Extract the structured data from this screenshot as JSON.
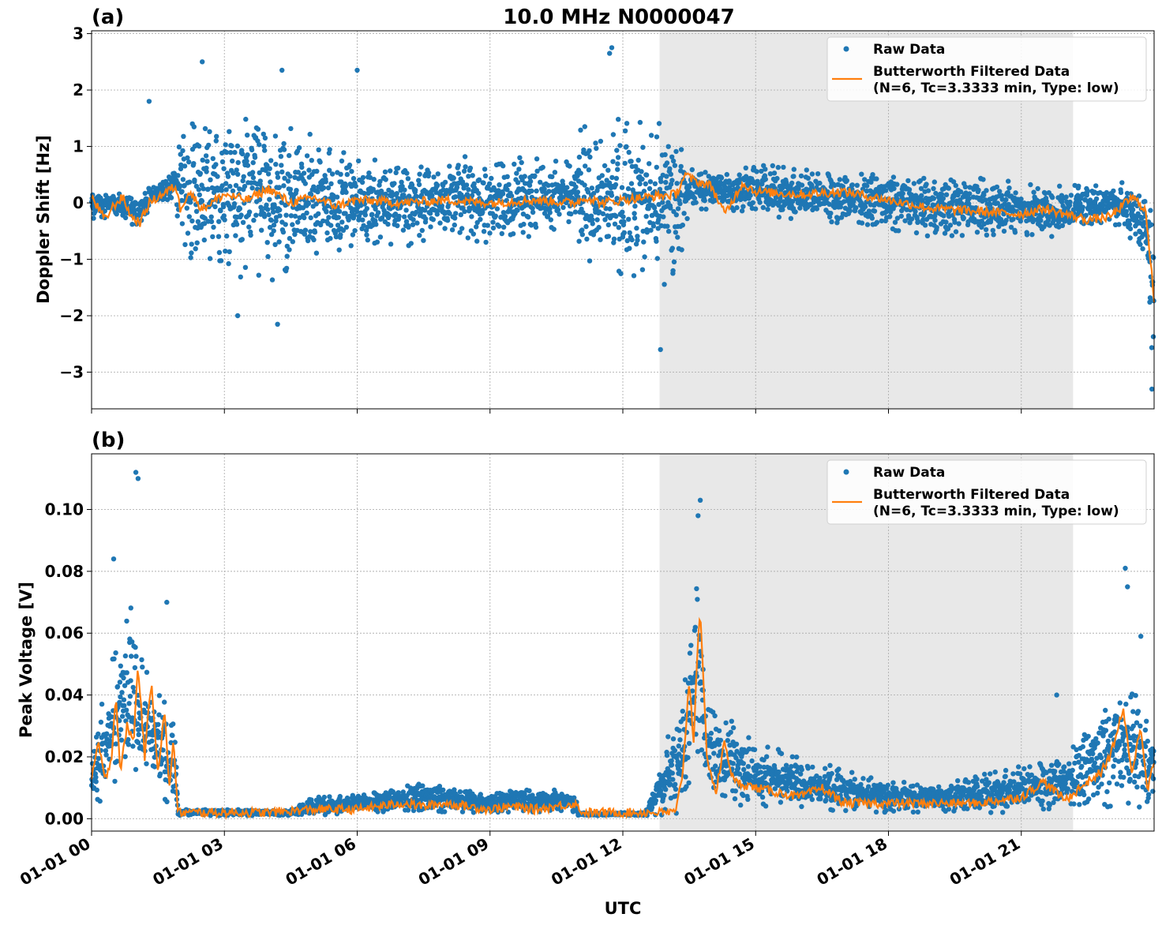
{
  "title": "10.0 MHz N0000047",
  "xlabel": "UTC",
  "colors": {
    "raw": "#1f77b4",
    "filtered": "#ff7f0e",
    "shade": "#e8e8e8",
    "grid": "#b0b0b0"
  },
  "legend": {
    "raw_label": "Raw Data",
    "filtered_label_1": "Butterworth Filtered Data",
    "filtered_label_2": "(N=6, Tc=3.3333 min, Type: low)"
  },
  "chart_data": [
    {
      "type": "scatter",
      "panel_label": "(a)",
      "ylabel": "Doppler Shift [Hz]",
      "xlim_hours": [
        0,
        24
      ],
      "ylim": [
        -3.65,
        3.05
      ],
      "yticks": [
        -3,
        -2,
        -1,
        0,
        1,
        2,
        3
      ],
      "ytick_labels": [
        "−3",
        "−2",
        "−1",
        "0",
        "1",
        "2",
        "3"
      ],
      "xticks_hours": [
        0,
        3,
        6,
        9,
        12,
        15,
        18,
        21
      ],
      "shaded_region_hours": [
        12.83,
        22.17
      ],
      "grid": true,
      "legend_position": "upper right",
      "series": [
        {
          "name": "Raw Data",
          "kind": "points",
          "envelope_hours": [
            0,
            0.5,
            1,
            1.5,
            1.9,
            2.0,
            3,
            4,
            5,
            6,
            7,
            8,
            9,
            10,
            10.9,
            11.0,
            12,
            13,
            13.4,
            13.5,
            15,
            17,
            19,
            21,
            22,
            23,
            23.8,
            24
          ],
          "envelope_low": [
            -0.4,
            -0.2,
            -0.45,
            0.0,
            0.1,
            -1.0,
            -1.3,
            -1.4,
            -1.2,
            -0.9,
            -0.8,
            -0.7,
            -0.75,
            -0.6,
            -0.5,
            -1.3,
            -1.4,
            -1.5,
            -0.8,
            -0.1,
            -0.2,
            -0.4,
            -0.6,
            -0.6,
            -0.6,
            -0.3,
            -0.9,
            -3.3
          ],
          "envelope_high": [
            0.25,
            0.2,
            0.1,
            0.4,
            0.55,
            1.4,
            1.5,
            1.6,
            1.2,
            0.9,
            0.8,
            0.8,
            0.9,
            0.85,
            0.7,
            1.4,
            1.5,
            1.5,
            0.9,
            0.6,
            0.7,
            0.6,
            0.5,
            0.4,
            0.3,
            0.35,
            0.4,
            0.3
          ],
          "outliers": [
            [
              2.5,
              2.5
            ],
            [
              11.75,
              2.75
            ],
            [
              11.7,
              2.65
            ],
            [
              4.2,
              -2.15
            ],
            [
              12.85,
              -2.6
            ],
            [
              3.3,
              -2.0
            ],
            [
              23.95,
              -3.3
            ],
            [
              1.3,
              1.8
            ],
            [
              4.3,
              2.35
            ],
            [
              6.0,
              2.35
            ]
          ]
        },
        {
          "name": "Butterworth Filtered Data (N=6, Tc=3.3333 min, Type: low)",
          "kind": "line",
          "x_hours": [
            0,
            0.3,
            0.5,
            0.7,
            0.9,
            1.1,
            1.3,
            1.6,
            1.9,
            2.0,
            2.2,
            2.5,
            3,
            3.5,
            4,
            4.5,
            5,
            5.5,
            6,
            7,
            8,
            9,
            10,
            10.9,
            11.2,
            11.5,
            12,
            12.5,
            13.2,
            13.4,
            13.6,
            14,
            14.3,
            14.7,
            15,
            16,
            17,
            18,
            19,
            20,
            21,
            21.5,
            22,
            22.5,
            23,
            23.5,
            23.8,
            24
          ],
          "y": [
            0.1,
            -0.3,
            -0.05,
            0.1,
            -0.25,
            -0.35,
            0.0,
            0.15,
            0.3,
            -0.1,
            0.2,
            -0.1,
            0.15,
            0.05,
            0.25,
            0.0,
            0.1,
            -0.05,
            0.05,
            0.0,
            0.05,
            0.0,
            0.05,
            0.0,
            0.1,
            0.0,
            0.05,
            0.1,
            0.15,
            0.5,
            0.4,
            0.3,
            -0.2,
            0.35,
            0.2,
            0.15,
            0.2,
            0.05,
            -0.1,
            -0.15,
            -0.2,
            -0.1,
            -0.2,
            -0.3,
            -0.25,
            0.1,
            -0.1,
            -1.7
          ]
        }
      ]
    },
    {
      "type": "scatter",
      "panel_label": "(b)",
      "ylabel": "Peak Voltage [V]",
      "xlim_hours": [
        0,
        24
      ],
      "ylim": [
        -0.004,
        0.118
      ],
      "yticks": [
        0.0,
        0.02,
        0.04,
        0.06,
        0.08,
        0.1
      ],
      "ytick_labels": [
        "0.00",
        "0.02",
        "0.04",
        "0.06",
        "0.08",
        "0.10"
      ],
      "xticks_hours": [
        0,
        3,
        6,
        9,
        12,
        15,
        18,
        21
      ],
      "xtick_labels": [
        "01-01 00",
        "01-01 03",
        "01-01 06",
        "01-01 09",
        "01-01 12",
        "01-01 15",
        "01-01 18",
        "01-01 21"
      ],
      "shaded_region_hours": [
        12.83,
        22.17
      ],
      "grid": true,
      "legend_position": "upper right",
      "series": [
        {
          "name": "Raw Data",
          "kind": "points",
          "envelope_hours": [
            0,
            0.3,
            0.6,
            0.9,
            1.0,
            1.2,
            1.5,
            1.7,
            1.9,
            1.95,
            4.5,
            5.0,
            6,
            7,
            7.5,
            8,
            9,
            9.5,
            10,
            10.9,
            11.0,
            12.5,
            13.3,
            13.5,
            13.7,
            13.9,
            14.3,
            15,
            16,
            17,
            18,
            19,
            20,
            21,
            22,
            22.5,
            23,
            23.5,
            24
          ],
          "envelope_low": [
            0.003,
            0.004,
            0.005,
            0.008,
            0.01,
            0.006,
            0.005,
            0.004,
            0.003,
            0.001,
            0.001,
            0.001,
            0.002,
            0.002,
            0.002,
            0.002,
            0.002,
            0.002,
            0.002,
            0.002,
            0.001,
            0.001,
            0.001,
            0.01,
            0.02,
            0.008,
            0.005,
            0.003,
            0.002,
            0.002,
            0.002,
            0.002,
            0.002,
            0.002,
            0.003,
            0.003,
            0.003,
            0.004,
            0.003
          ],
          "envelope_high": [
            0.03,
            0.04,
            0.06,
            0.07,
            0.065,
            0.055,
            0.045,
            0.035,
            0.03,
            0.003,
            0.003,
            0.007,
            0.008,
            0.011,
            0.012,
            0.011,
            0.008,
            0.01,
            0.009,
            0.01,
            0.002,
            0.002,
            0.04,
            0.07,
            0.09,
            0.04,
            0.035,
            0.025,
            0.02,
            0.016,
            0.012,
            0.012,
            0.014,
            0.018,
            0.022,
            0.03,
            0.04,
            0.045,
            0.03
          ],
          "outliers": [
            [
              1.0,
              0.112
            ],
            [
              1.05,
              0.11
            ],
            [
              0.5,
              0.084
            ],
            [
              1.7,
              0.07
            ],
            [
              13.75,
              0.103
            ],
            [
              13.7,
              0.098
            ],
            [
              23.35,
              0.081
            ],
            [
              23.4,
              0.075
            ],
            [
              21.8,
              0.04
            ],
            [
              23.7,
              0.059
            ]
          ]
        },
        {
          "name": "Butterworth Filtered Data (N=6, Tc=3.3333 min, Type: low)",
          "kind": "line",
          "x_hours": [
            0,
            0.15,
            0.3,
            0.45,
            0.55,
            0.65,
            0.8,
            0.95,
            1.05,
            1.2,
            1.35,
            1.5,
            1.65,
            1.75,
            1.85,
            1.95,
            2.1,
            4,
            5,
            6,
            7,
            7.5,
            8,
            9,
            9.5,
            10,
            10.5,
            10.9,
            11.1,
            12,
            13.2,
            13.35,
            13.5,
            13.6,
            13.7,
            13.75,
            13.9,
            14.1,
            14.3,
            14.5,
            15,
            16,
            16.5,
            17,
            18,
            19,
            20,
            21,
            21.5,
            22,
            22.5,
            22.8,
            23,
            23.3,
            23.5,
            23.7,
            23.85,
            24
          ],
          "y": [
            0.012,
            0.025,
            0.012,
            0.02,
            0.04,
            0.015,
            0.03,
            0.025,
            0.05,
            0.02,
            0.045,
            0.015,
            0.035,
            0.01,
            0.025,
            0.002,
            0.002,
            0.002,
            0.003,
            0.003,
            0.005,
            0.004,
            0.005,
            0.003,
            0.004,
            0.003,
            0.004,
            0.005,
            0.002,
            0.002,
            0.002,
            0.015,
            0.045,
            0.025,
            0.06,
            0.065,
            0.02,
            0.008,
            0.025,
            0.012,
            0.01,
            0.007,
            0.01,
            0.005,
            0.005,
            0.005,
            0.005,
            0.007,
            0.012,
            0.006,
            0.012,
            0.015,
            0.02,
            0.035,
            0.015,
            0.03,
            0.01,
            0.018
          ]
        }
      ]
    }
  ]
}
